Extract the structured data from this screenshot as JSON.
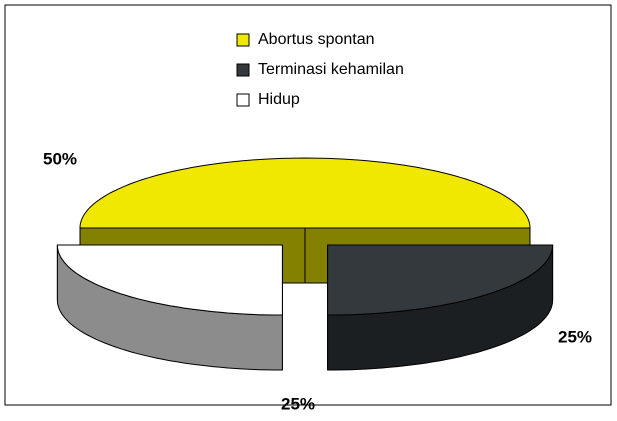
{
  "chart_data": {
    "type": "pie",
    "categories": [
      "Abortus spontan",
      "Terminasi kehamilan",
      "Hidup"
    ],
    "values": [
      50,
      25,
      25
    ],
    "value_labels": [
      "50%",
      "25%",
      "25%"
    ],
    "colors": [
      "#f0e800",
      "#33393c",
      "#ffffff"
    ],
    "legend": "top"
  }
}
